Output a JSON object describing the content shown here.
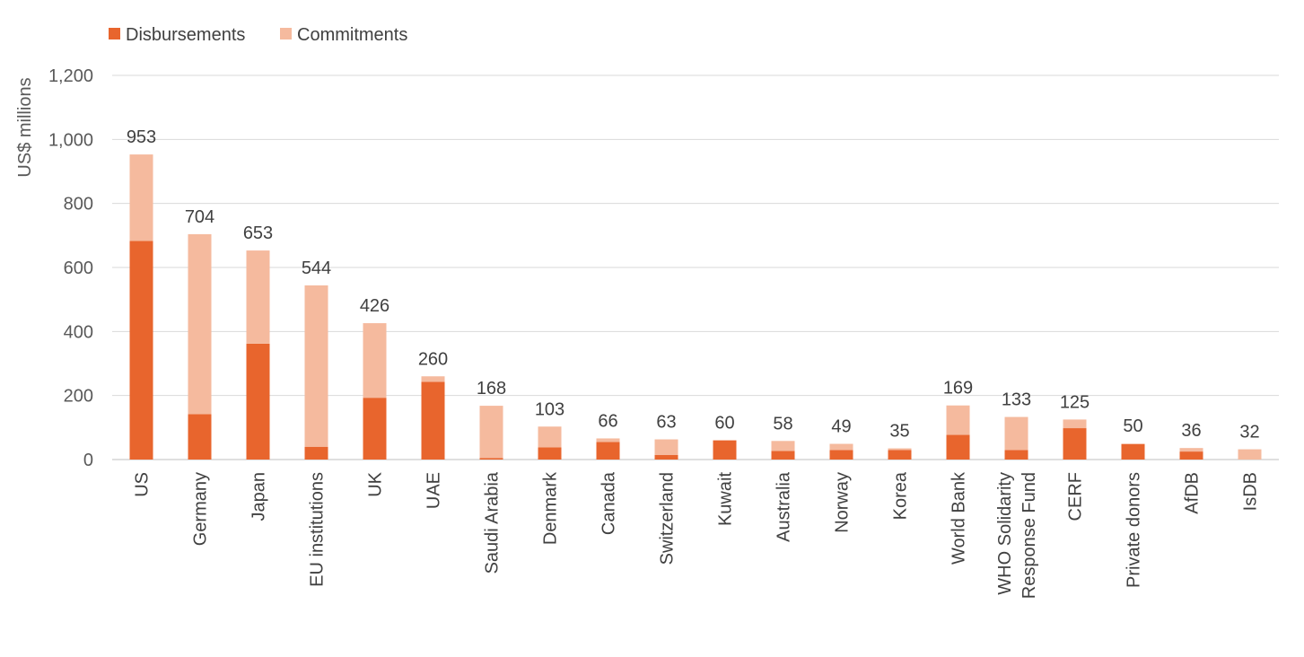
{
  "chart_data": {
    "type": "bar",
    "stacked": true,
    "title": "",
    "xlabel": "",
    "ylabel": "US$ millions",
    "ylim": [
      0,
      1200
    ],
    "yticks": [
      0,
      200,
      400,
      600,
      800,
      1000,
      1200
    ],
    "ytick_labels": [
      "0",
      "200",
      "400",
      "600",
      "800",
      "1,000",
      "1,200"
    ],
    "grid": true,
    "legend_position": "top-left",
    "categories": [
      "US",
      "Germany",
      "Japan",
      "EU institutions",
      "UK",
      "UAE",
      "Saudi Arabia",
      "Denmark",
      "Canada",
      "Switzerland",
      "Kuwait",
      "Australia",
      "Norway",
      "Korea",
      "World Bank",
      "WHO Solidarity Response Fund",
      "CERF",
      "Private donors",
      "AfDB",
      "IsDB"
    ],
    "category_lines": [
      [
        "US"
      ],
      [
        "Germany"
      ],
      [
        "Japan"
      ],
      [
        "EU institutions"
      ],
      [
        "UK"
      ],
      [
        "UAE"
      ],
      [
        "Saudi Arabia"
      ],
      [
        "Denmark"
      ],
      [
        "Canada"
      ],
      [
        "Switzerland"
      ],
      [
        "Kuwait"
      ],
      [
        "Australia"
      ],
      [
        "Norway"
      ],
      [
        "Korea"
      ],
      [
        "World Bank"
      ],
      [
        "WHO Solidarity",
        "Response Fund"
      ],
      [
        "CERF"
      ],
      [
        "Private donors"
      ],
      [
        "AfDB"
      ],
      [
        "IsDB"
      ]
    ],
    "series": [
      {
        "name": "Disbursements",
        "color": "#E8652D",
        "values": [
          683,
          142,
          362,
          40,
          193,
          243,
          5,
          38,
          55,
          14,
          60,
          27,
          30,
          30,
          77,
          30,
          98,
          48,
          25,
          0
        ]
      },
      {
        "name": "Commitments",
        "color": "#F5BA9E",
        "values": [
          270,
          562,
          291,
          504,
          233,
          17,
          163,
          65,
          11,
          49,
          0,
          31,
          19,
          5,
          92,
          103,
          27,
          2,
          11,
          32
        ]
      }
    ],
    "totals": [
      953,
      704,
      653,
      544,
      426,
      260,
      168,
      103,
      66,
      63,
      60,
      58,
      49,
      35,
      169,
      133,
      125,
      50,
      36,
      32
    ],
    "total_labels": [
      "953",
      "704",
      "653",
      "544",
      "426",
      "260",
      "168",
      "103",
      "66",
      "63",
      "60",
      "58",
      "49",
      "35",
      "169",
      "133",
      "125",
      "50",
      "36",
      "32"
    ]
  }
}
